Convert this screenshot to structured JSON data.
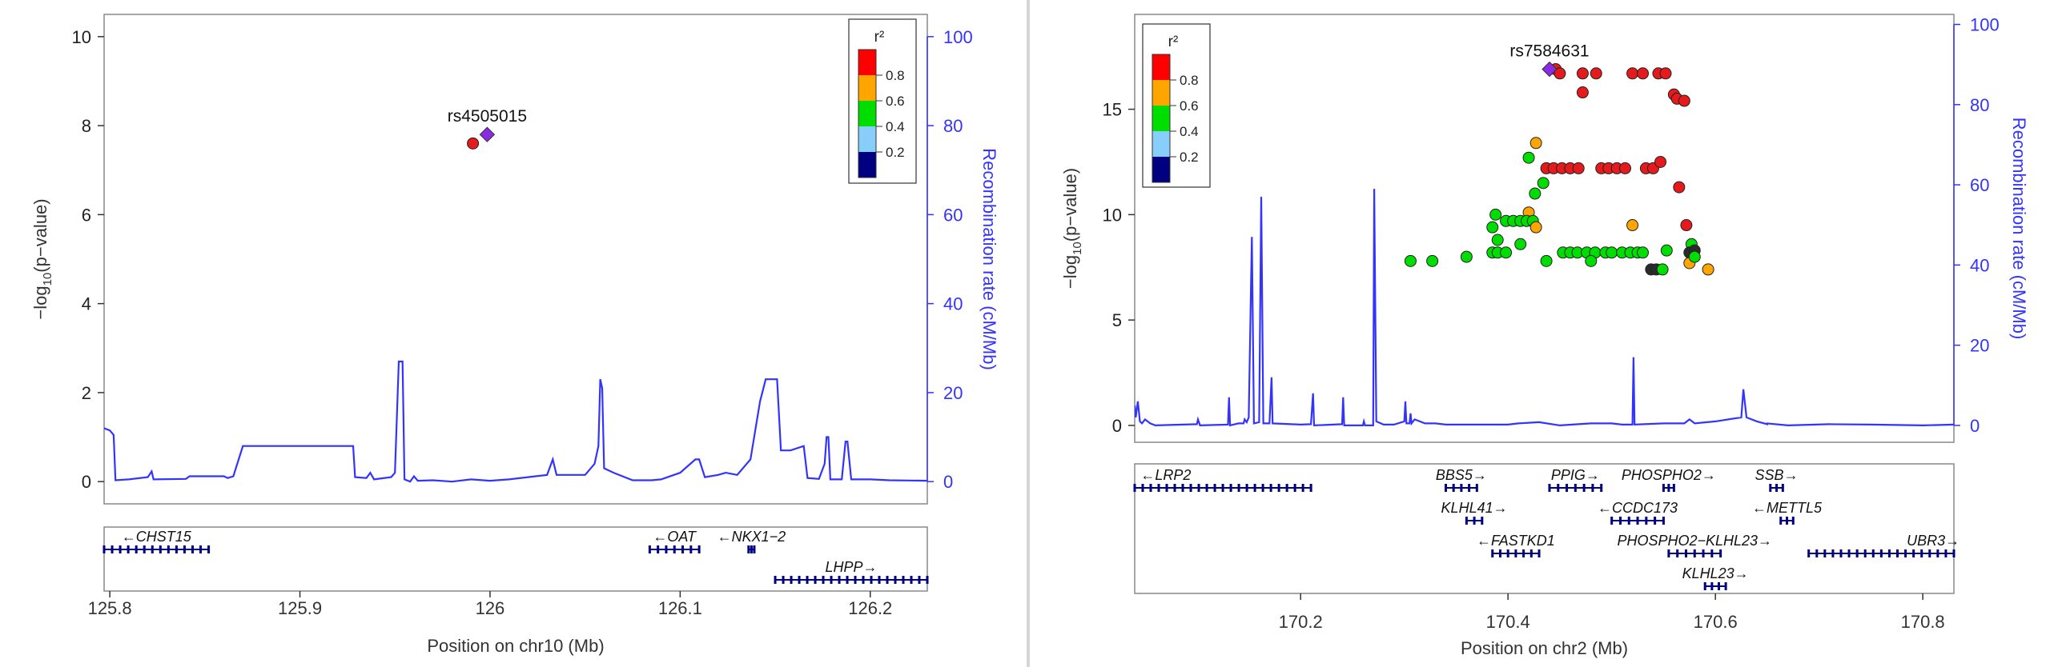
{
  "chart_data": [
    {
      "type": "scatter",
      "chromosome": "chr10",
      "xlabel": "Position on chr10 (Mb)",
      "ylabel": "−log₁₀(p-value)",
      "ylabel_parts": [
        "−log",
        "10",
        "(p−value)"
      ],
      "ylabel2": "Recombination rate (cM/Mb)",
      "xlim": [
        125.797,
        126.23
      ],
      "ylim": [
        -0.5,
        10.5
      ],
      "y2lim": [
        -5,
        105
      ],
      "xticks": [
        125.8,
        125.9,
        126,
        126.1,
        126.2
      ],
      "xtick_labels": [
        "125.8",
        "125.9",
        "126",
        "126.1",
        "126.2"
      ],
      "yticks": [
        0,
        2,
        4,
        6,
        8,
        10
      ],
      "y2ticks": [
        0,
        20,
        40,
        60,
        80,
        100
      ],
      "legend": {
        "title": "r²",
        "position": "top-right",
        "bins": [
          {
            "color": "#000080",
            "label": "0.2"
          },
          {
            "color": "#87cefa",
            "label": "0.4"
          },
          {
            "color": "#00dd00",
            "label": "0.6"
          },
          {
            "color": "#ffa500",
            "label": "0.8"
          },
          {
            "color": "#ff0000",
            "label": ""
          }
        ],
        "labels": [
          "0.2",
          "0.4",
          "0.6",
          "0.8"
        ]
      },
      "lead_snp": {
        "name": "rs4505015",
        "x": 125.9985,
        "y": 7.8
      },
      "points": [
        {
          "x": 125.991,
          "y": 7.6,
          "color": "#e41a1c"
        }
      ],
      "recomb": [
        [
          125.797,
          12
        ],
        [
          125.8,
          11.5
        ],
        [
          125.802,
          10.5
        ],
        [
          125.803,
          0.3
        ],
        [
          125.81,
          0.5
        ],
        [
          125.82,
          1
        ],
        [
          125.822,
          2.3
        ],
        [
          125.823,
          0.5
        ],
        [
          125.84,
          0.6
        ],
        [
          125.842,
          1.2
        ],
        [
          125.86,
          1.2
        ],
        [
          125.862,
          0.8
        ],
        [
          125.865,
          1.2
        ],
        [
          125.87,
          8
        ],
        [
          125.928,
          8
        ],
        [
          125.929,
          1
        ],
        [
          125.935,
          0.8
        ],
        [
          125.937,
          2
        ],
        [
          125.939,
          0.5
        ],
        [
          125.948,
          1
        ],
        [
          125.95,
          2
        ],
        [
          125.952,
          27
        ],
        [
          125.954,
          27
        ],
        [
          125.955,
          0.5
        ],
        [
          125.958,
          0
        ],
        [
          125.96,
          1.2
        ],
        [
          125.962,
          0.2
        ],
        [
          125.97,
          0.3
        ],
        [
          125.98,
          0
        ],
        [
          125.99,
          0.5
        ],
        [
          126.0,
          0.2
        ],
        [
          126.01,
          0.5
        ],
        [
          126.02,
          1
        ],
        [
          126.03,
          1.5
        ],
        [
          126.033,
          5
        ],
        [
          126.035,
          1.5
        ],
        [
          126.05,
          1.5
        ],
        [
          126.055,
          4
        ],
        [
          126.057,
          8
        ],
        [
          126.058,
          23
        ],
        [
          126.059,
          21
        ],
        [
          126.06,
          3
        ],
        [
          126.065,
          2
        ],
        [
          126.075,
          0.3
        ],
        [
          126.085,
          0.3
        ],
        [
          126.09,
          0.5
        ],
        [
          126.1,
          2
        ],
        [
          126.108,
          5
        ],
        [
          126.11,
          5
        ],
        [
          126.113,
          1
        ],
        [
          126.12,
          1.5
        ],
        [
          126.124,
          2
        ],
        [
          126.13,
          1.5
        ],
        [
          126.137,
          5
        ],
        [
          126.142,
          18
        ],
        [
          126.145,
          23
        ],
        [
          126.151,
          23
        ],
        [
          126.153,
          7
        ],
        [
          126.158,
          7
        ],
        [
          126.165,
          8
        ],
        [
          126.167,
          0.8
        ],
        [
          126.173,
          0.6
        ],
        [
          126.176,
          4
        ],
        [
          126.177,
          10
        ],
        [
          126.178,
          10
        ],
        [
          126.179,
          0.5
        ],
        [
          126.185,
          0.5
        ],
        [
          126.187,
          9
        ],
        [
          126.188,
          9
        ],
        [
          126.19,
          0.5
        ],
        [
          126.2,
          0.5
        ],
        [
          126.21,
          0.3
        ],
        [
          126.23,
          0.2
        ]
      ],
      "genes": [
        {
          "name": "CHST15",
          "label": "←CHST15",
          "start": 125.797,
          "end": 125.852,
          "row": 0
        },
        {
          "name": "OAT",
          "label": "←OAT",
          "start": 126.084,
          "end": 126.11,
          "row": 0
        },
        {
          "name": "NKX1-2",
          "label": "←NKX1−2",
          "start": 126.136,
          "end": 126.139,
          "row": 0
        },
        {
          "name": "LHPP",
          "label": "LHPP→",
          "start": 126.15,
          "end": 126.23,
          "row": 1
        }
      ]
    },
    {
      "type": "scatter",
      "chromosome": "chr2",
      "xlabel": "Position on chr2 (Mb)",
      "ylabel": "−log₁₀(p-value)",
      "ylabel_parts": [
        "−log",
        "10",
        "(p−value)"
      ],
      "ylabel2": "Recombination rate (cM/Mb)",
      "xlim": [
        170.04,
        170.83
      ],
      "ylim": [
        -0.8,
        19.5
      ],
      "y2lim": [
        -4.2,
        102.5
      ],
      "xticks": [
        170.2,
        170.4,
        170.6,
        170.8
      ],
      "xtick_labels": [
        "170.2",
        "170.4",
        "170.6",
        "170.8"
      ],
      "yticks": [
        0,
        5,
        10,
        15
      ],
      "y2ticks": [
        0,
        20,
        40,
        60,
        80,
        100
      ],
      "legend": {
        "title": "r²",
        "position": "top-left",
        "labels": [
          "0.2",
          "0.4",
          "0.6",
          "0.8"
        ]
      },
      "lead_snp": {
        "name": "rs7584631",
        "x": 170.44,
        "y": 16.9
      },
      "points": [
        {
          "x": 170.446,
          "y": 16.9,
          "color": "#e41a1c"
        },
        {
          "x": 170.45,
          "y": 16.7,
          "color": "#e41a1c"
        },
        {
          "x": 170.472,
          "y": 16.7,
          "color": "#e41a1c"
        },
        {
          "x": 170.485,
          "y": 16.7,
          "color": "#e41a1c"
        },
        {
          "x": 170.52,
          "y": 16.7,
          "color": "#e41a1c"
        },
        {
          "x": 170.53,
          "y": 16.7,
          "color": "#e41a1c"
        },
        {
          "x": 170.545,
          "y": 16.7,
          "color": "#e41a1c"
        },
        {
          "x": 170.552,
          "y": 16.7,
          "color": "#e41a1c"
        },
        {
          "x": 170.472,
          "y": 15.8,
          "color": "#e41a1c"
        },
        {
          "x": 170.56,
          "y": 15.7,
          "color": "#e41a1c"
        },
        {
          "x": 170.563,
          "y": 15.5,
          "color": "#e41a1c"
        },
        {
          "x": 170.57,
          "y": 15.4,
          "color": "#e41a1c"
        },
        {
          "x": 170.427,
          "y": 13.4,
          "color": "#ffa500"
        },
        {
          "x": 170.42,
          "y": 12.7,
          "color": "#00dd00"
        },
        {
          "x": 170.437,
          "y": 12.2,
          "color": "#e41a1c"
        },
        {
          "x": 170.444,
          "y": 12.2,
          "color": "#e41a1c"
        },
        {
          "x": 170.452,
          "y": 12.2,
          "color": "#e41a1c"
        },
        {
          "x": 170.46,
          "y": 12.2,
          "color": "#e41a1c"
        },
        {
          "x": 170.468,
          "y": 12.2,
          "color": "#e41a1c"
        },
        {
          "x": 170.49,
          "y": 12.2,
          "color": "#e41a1c"
        },
        {
          "x": 170.497,
          "y": 12.2,
          "color": "#e41a1c"
        },
        {
          "x": 170.505,
          "y": 12.2,
          "color": "#e41a1c"
        },
        {
          "x": 170.513,
          "y": 12.2,
          "color": "#e41a1c"
        },
        {
          "x": 170.533,
          "y": 12.2,
          "color": "#e41a1c"
        },
        {
          "x": 170.54,
          "y": 12.2,
          "color": "#e41a1c"
        },
        {
          "x": 170.547,
          "y": 12.5,
          "color": "#e41a1c"
        },
        {
          "x": 170.434,
          "y": 11.5,
          "color": "#00dd00"
        },
        {
          "x": 170.426,
          "y": 11.0,
          "color": "#00dd00"
        },
        {
          "x": 170.565,
          "y": 11.3,
          "color": "#e41a1c"
        },
        {
          "x": 170.388,
          "y": 10.0,
          "color": "#00dd00"
        },
        {
          "x": 170.42,
          "y": 10.1,
          "color": "#ffa500"
        },
        {
          "x": 170.398,
          "y": 9.7,
          "color": "#00dd00"
        },
        {
          "x": 170.405,
          "y": 9.7,
          "color": "#00dd00"
        },
        {
          "x": 170.412,
          "y": 9.7,
          "color": "#00dd00"
        },
        {
          "x": 170.418,
          "y": 9.7,
          "color": "#00dd00"
        },
        {
          "x": 170.424,
          "y": 9.7,
          "color": "#00dd00"
        },
        {
          "x": 170.385,
          "y": 9.4,
          "color": "#00dd00"
        },
        {
          "x": 170.427,
          "y": 9.4,
          "color": "#ffa500"
        },
        {
          "x": 170.52,
          "y": 9.5,
          "color": "#ffa500"
        },
        {
          "x": 170.572,
          "y": 9.5,
          "color": "#e41a1c"
        },
        {
          "x": 170.39,
          "y": 8.8,
          "color": "#00dd00"
        },
        {
          "x": 170.412,
          "y": 8.6,
          "color": "#00dd00"
        },
        {
          "x": 170.577,
          "y": 8.6,
          "color": "#00dd00"
        },
        {
          "x": 170.385,
          "y": 8.2,
          "color": "#00dd00"
        },
        {
          "x": 170.39,
          "y": 8.2,
          "color": "#00dd00"
        },
        {
          "x": 170.398,
          "y": 8.2,
          "color": "#00dd00"
        },
        {
          "x": 170.453,
          "y": 8.2,
          "color": "#00dd00"
        },
        {
          "x": 170.46,
          "y": 8.2,
          "color": "#00dd00"
        },
        {
          "x": 170.467,
          "y": 8.2,
          "color": "#00dd00"
        },
        {
          "x": 170.476,
          "y": 8.2,
          "color": "#00dd00"
        },
        {
          "x": 170.484,
          "y": 8.2,
          "color": "#00dd00"
        },
        {
          "x": 170.494,
          "y": 8.2,
          "color": "#00dd00"
        },
        {
          "x": 170.5,
          "y": 8.2,
          "color": "#00dd00"
        },
        {
          "x": 170.51,
          "y": 8.2,
          "color": "#00dd00"
        },
        {
          "x": 170.518,
          "y": 8.2,
          "color": "#00dd00"
        },
        {
          "x": 170.525,
          "y": 8.2,
          "color": "#00dd00"
        },
        {
          "x": 170.53,
          "y": 8.2,
          "color": "#00dd00"
        },
        {
          "x": 170.553,
          "y": 8.3,
          "color": "#00dd00"
        },
        {
          "x": 170.575,
          "y": 8.2,
          "color": "#2b2b2b"
        },
        {
          "x": 170.58,
          "y": 8.3,
          "color": "#2b2b2b"
        },
        {
          "x": 170.306,
          "y": 7.8,
          "color": "#00dd00"
        },
        {
          "x": 170.327,
          "y": 7.8,
          "color": "#00dd00"
        },
        {
          "x": 170.36,
          "y": 8.0,
          "color": "#00dd00"
        },
        {
          "x": 170.437,
          "y": 7.8,
          "color": "#00dd00"
        },
        {
          "x": 170.48,
          "y": 7.8,
          "color": "#00dd00"
        },
        {
          "x": 170.575,
          "y": 7.7,
          "color": "#ffa500"
        },
        {
          "x": 170.58,
          "y": 8.0,
          "color": "#00dd00"
        },
        {
          "x": 170.538,
          "y": 7.4,
          "color": "#2b2b2b"
        },
        {
          "x": 170.543,
          "y": 7.4,
          "color": "#2b2b2b"
        },
        {
          "x": 170.549,
          "y": 7.4,
          "color": "#00dd00"
        },
        {
          "x": 170.593,
          "y": 7.4,
          "color": "#ffa500"
        }
      ],
      "recomb": [
        [
          170.04,
          5
        ],
        [
          170.041,
          2
        ],
        [
          170.043,
          6
        ],
        [
          170.045,
          1
        ],
        [
          170.047,
          0.5
        ],
        [
          170.05,
          1.5
        ],
        [
          170.055,
          0.5
        ],
        [
          170.06,
          0
        ],
        [
          170.1,
          0.3
        ],
        [
          170.101,
          1.5
        ],
        [
          170.103,
          0
        ],
        [
          170.13,
          0.2
        ],
        [
          170.131,
          7
        ],
        [
          170.132,
          0
        ],
        [
          170.14,
          0.5
        ],
        [
          170.145,
          0.5
        ],
        [
          170.146,
          1.5
        ],
        [
          170.148,
          0.8
        ],
        [
          170.15,
          2
        ],
        [
          170.153,
          47
        ],
        [
          170.155,
          0.5
        ],
        [
          170.16,
          0.8
        ],
        [
          170.162,
          57
        ],
        [
          170.164,
          0.5
        ],
        [
          170.17,
          0.5
        ],
        [
          170.172,
          12
        ],
        [
          170.173,
          0.5
        ],
        [
          170.2,
          0.2
        ],
        [
          170.21,
          0.3
        ],
        [
          170.212,
          8
        ],
        [
          170.213,
          0
        ],
        [
          170.24,
          0.3
        ],
        [
          170.241,
          7
        ],
        [
          170.242,
          0
        ],
        [
          170.26,
          0
        ],
        [
          170.261,
          1
        ],
        [
          170.262,
          0
        ],
        [
          170.27,
          0
        ],
        [
          170.271,
          59
        ],
        [
          170.273,
          1
        ],
        [
          170.28,
          0.2
        ],
        [
          170.29,
          0.2
        ],
        [
          170.3,
          1
        ],
        [
          170.301,
          6
        ],
        [
          170.302,
          0.5
        ],
        [
          170.305,
          0.5
        ],
        [
          170.306,
          3
        ],
        [
          170.307,
          0.5
        ],
        [
          170.31,
          1.5
        ],
        [
          170.32,
          0.5
        ],
        [
          170.33,
          0.5
        ],
        [
          170.34,
          0.2
        ],
        [
          170.4,
          0.2
        ],
        [
          170.41,
          0.5
        ],
        [
          170.43,
          0.8
        ],
        [
          170.45,
          0
        ],
        [
          170.48,
          0.5
        ],
        [
          170.5,
          0.5
        ],
        [
          170.51,
          0.2
        ],
        [
          170.52,
          0.2
        ],
        [
          170.521,
          17
        ],
        [
          170.522,
          0.2
        ],
        [
          170.55,
          0.5
        ],
        [
          170.57,
          0.5
        ],
        [
          170.575,
          1.5
        ],
        [
          170.58,
          0.5
        ],
        [
          170.6,
          1
        ],
        [
          170.625,
          2
        ],
        [
          170.627,
          9
        ],
        [
          170.63,
          2
        ],
        [
          170.64,
          1
        ],
        [
          170.65,
          0.3
        ],
        [
          170.65,
          0.5
        ],
        [
          170.67,
          0
        ],
        [
          170.71,
          0.3
        ],
        [
          170.75,
          0.2
        ],
        [
          170.8,
          0
        ],
        [
          170.83,
          0.2
        ]
      ],
      "genes": [
        {
          "name": "LRP2",
          "label": "←LRP2",
          "start": 170.04,
          "end": 170.21,
          "row": 0,
          "label_x": 170.07
        },
        {
          "name": "BBS5",
          "label": "BBS5→",
          "start": 170.34,
          "end": 170.37,
          "row": 0
        },
        {
          "name": "PPIG",
          "label": "PPIG→",
          "start": 170.44,
          "end": 170.49,
          "row": 0
        },
        {
          "name": "PHOSPHO2",
          "label": "PHOSPHO2→",
          "start": 170.55,
          "end": 170.56,
          "row": 0
        },
        {
          "name": "SSB",
          "label": "SSB→",
          "start": 170.653,
          "end": 170.665,
          "row": 0
        },
        {
          "name": "KLHL41",
          "label": "KLHL41→",
          "start": 170.36,
          "end": 170.375,
          "row": 1
        },
        {
          "name": "CCDC173",
          "label": "←CCDC173",
          "start": 170.5,
          "end": 170.55,
          "row": 1
        },
        {
          "name": "METTL5",
          "label": "←METTL5",
          "start": 170.663,
          "end": 170.675,
          "row": 1
        },
        {
          "name": "FASTKD1",
          "label": "←FASTKD1",
          "start": 170.385,
          "end": 170.43,
          "row": 2
        },
        {
          "name": "PHOSPHO2-KLHL23",
          "label": "PHOSPHO2−KLHL23→",
          "start": 170.555,
          "end": 170.605,
          "row": 2
        },
        {
          "name": "UBR3",
          "label": "UBR3→",
          "start": 170.69,
          "end": 170.83,
          "row": 2,
          "label_x": 170.81
        },
        {
          "name": "KLHL23",
          "label": "KLHL23→",
          "start": 170.59,
          "end": 170.61,
          "row": 3
        }
      ]
    }
  ]
}
